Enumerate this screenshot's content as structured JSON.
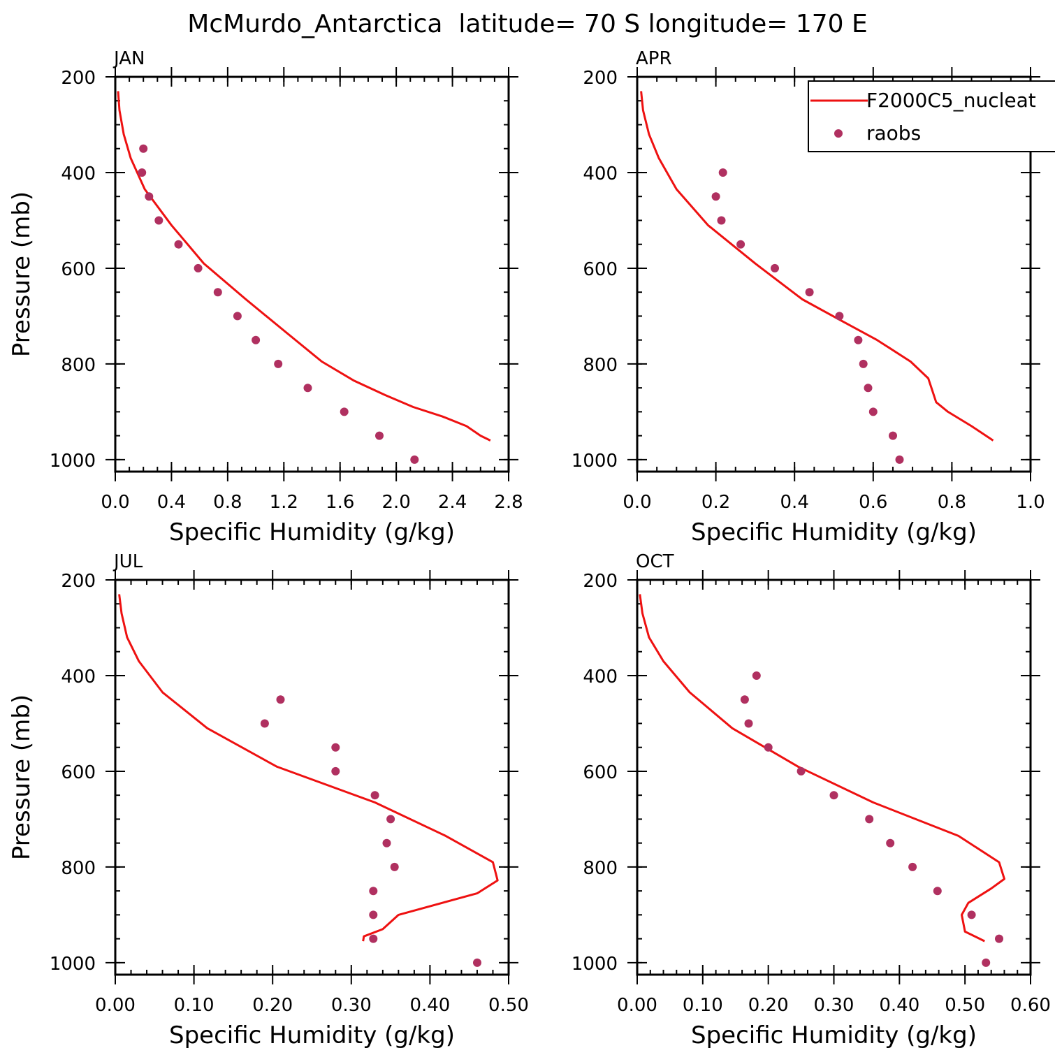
{
  "title": "McMurdo_Antarctica  latitude= 70 S longitude= 170 E",
  "legend": {
    "model_label": "F2000C5_nucleat",
    "obs_label": "raobs",
    "placement": "top-right of APR panel (clipped at right edge)"
  },
  "colors": {
    "model_line": "#ee1111",
    "obs_marker": "#b03060",
    "axis": "#000000"
  },
  "chart_data": [
    {
      "type": "line",
      "panel_label": "JAN",
      "xlabel": "Specific Humidity (g/kg)",
      "ylabel": "Pressure (mb)",
      "xlim": [
        0.0,
        2.8
      ],
      "ylim": [
        200,
        1025
      ],
      "xticks": [
        "0.0",
        "0.4",
        "0.8",
        "1.2",
        "1.6",
        "2.0",
        "2.4",
        "2.8"
      ],
      "xtick_values": [
        0.0,
        0.4,
        0.8,
        1.2,
        1.6,
        2.0,
        2.4,
        2.8
      ],
      "xminor_step": 0.1,
      "yticks": [
        "200",
        "400",
        "600",
        "800",
        "1000"
      ],
      "ytick_values": [
        200,
        400,
        600,
        800,
        1000
      ],
      "yminor_step": 50,
      "series": [
        {
          "name": "F2000C5_nucleat",
          "kind": "line",
          "x": [
            0.02,
            0.03,
            0.06,
            0.11,
            0.21,
            0.4,
            0.63,
            0.93,
            1.22,
            1.47,
            1.7,
            1.92,
            2.12,
            2.33,
            2.5,
            2.6,
            2.67
          ],
          "y": [
            230,
            270,
            320,
            370,
            435,
            510,
            590,
            665,
            735,
            795,
            835,
            865,
            890,
            910,
            930,
            950,
            960
          ]
        },
        {
          "name": "raobs",
          "kind": "scatter",
          "x": [
            0.2,
            0.19,
            0.24,
            0.31,
            0.45,
            0.59,
            0.73,
            0.87,
            1.0,
            1.16,
            1.37,
            1.63,
            1.88,
            2.13
          ],
          "y": [
            350,
            400,
            450,
            500,
            550,
            600,
            650,
            700,
            750,
            800,
            850,
            900,
            950,
            1000
          ]
        }
      ]
    },
    {
      "type": "line",
      "panel_label": "APR",
      "xlabel": "Specific Humidity (g/kg)",
      "ylabel": "",
      "xlim": [
        0.0,
        1.0
      ],
      "ylim": [
        200,
        1025
      ],
      "xticks": [
        "0.0",
        "0.2",
        "0.4",
        "0.6",
        "0.8",
        "1.0"
      ],
      "xtick_values": [
        0.0,
        0.2,
        0.4,
        0.6,
        0.8,
        1.0
      ],
      "xminor_step": 0.05,
      "yticks": [
        "200",
        "400",
        "600",
        "800",
        "1000"
      ],
      "ytick_values": [
        200,
        400,
        600,
        800,
        1000
      ],
      "yminor_step": 50,
      "series": [
        {
          "name": "F2000C5_nucleat",
          "kind": "line",
          "x": [
            0.01,
            0.015,
            0.03,
            0.055,
            0.1,
            0.18,
            0.3,
            0.42,
            0.52,
            0.61,
            0.695,
            0.74,
            0.75,
            0.76,
            0.79,
            0.85,
            0.905
          ],
          "y": [
            230,
            270,
            320,
            370,
            435,
            510,
            590,
            665,
            710,
            750,
            795,
            830,
            855,
            880,
            900,
            930,
            960
          ]
        },
        {
          "name": "raobs",
          "kind": "scatter",
          "x": [
            0.218,
            0.2,
            0.214,
            0.263,
            0.35,
            0.438,
            0.514,
            0.562,
            0.575,
            0.587,
            0.6,
            0.65,
            0.667
          ],
          "y": [
            400,
            450,
            500,
            550,
            600,
            650,
            700,
            750,
            800,
            850,
            900,
            950,
            1000
          ]
        }
      ]
    },
    {
      "type": "line",
      "panel_label": "JUL",
      "xlabel": "Specific Humidity (g/kg)",
      "ylabel": "Pressure (mb)",
      "xlim": [
        0.0,
        0.5
      ],
      "ylim": [
        200,
        1025
      ],
      "xticks": [
        "0.00",
        "0.10",
        "0.20",
        "0.30",
        "0.40",
        "0.50"
      ],
      "xtick_values": [
        0.0,
        0.1,
        0.2,
        0.3,
        0.4,
        0.5
      ],
      "xminor_step": 0.02,
      "yticks": [
        "200",
        "400",
        "600",
        "800",
        "1000"
      ],
      "ytick_values": [
        200,
        400,
        600,
        800,
        1000
      ],
      "yminor_step": 50,
      "series": [
        {
          "name": "F2000C5_nucleat",
          "kind": "line",
          "x": [
            0.005,
            0.008,
            0.015,
            0.03,
            0.06,
            0.117,
            0.205,
            0.33,
            0.42,
            0.48,
            0.486,
            0.46,
            0.36,
            0.34,
            0.316,
            0.315
          ],
          "y": [
            230,
            270,
            320,
            370,
            435,
            510,
            590,
            665,
            735,
            790,
            828,
            855,
            900,
            930,
            945,
            955
          ]
        },
        {
          "name": "raobs",
          "kind": "scatter",
          "x": [
            0.21,
            0.19,
            0.28,
            0.28,
            0.33,
            0.35,
            0.345,
            0.355,
            0.328,
            0.328,
            0.328,
            0.46
          ],
          "y": [
            450,
            500,
            550,
            600,
            650,
            700,
            750,
            800,
            850,
            900,
            950,
            1000
          ]
        }
      ]
    },
    {
      "type": "line",
      "panel_label": "OCT",
      "xlabel": "Specific Humidity (g/kg)",
      "ylabel": "",
      "xlim": [
        0.0,
        0.6
      ],
      "ylim": [
        200,
        1025
      ],
      "xticks": [
        "0.00",
        "0.10",
        "0.20",
        "0.30",
        "0.40",
        "0.50",
        "0.60"
      ],
      "xtick_values": [
        0.0,
        0.1,
        0.2,
        0.3,
        0.4,
        0.5,
        0.6
      ],
      "xminor_step": 0.02,
      "yticks": [
        "200",
        "400",
        "600",
        "800",
        "1000"
      ],
      "ytick_values": [
        200,
        400,
        600,
        800,
        1000
      ],
      "yminor_step": 50,
      "series": [
        {
          "name": "F2000C5_nucleat",
          "kind": "line",
          "x": [
            0.004,
            0.008,
            0.018,
            0.04,
            0.08,
            0.145,
            0.245,
            0.36,
            0.49,
            0.552,
            0.56,
            0.54,
            0.505,
            0.495,
            0.5,
            0.53
          ],
          "y": [
            230,
            270,
            320,
            370,
            435,
            510,
            590,
            665,
            735,
            790,
            825,
            845,
            875,
            900,
            935,
            955
          ]
        },
        {
          "name": "raobs",
          "kind": "scatter",
          "x": [
            0.182,
            0.164,
            0.17,
            0.2,
            0.25,
            0.3,
            0.354,
            0.386,
            0.42,
            0.458,
            0.51,
            0.552,
            0.532
          ],
          "y": [
            400,
            450,
            500,
            550,
            600,
            650,
            700,
            750,
            800,
            850,
            900,
            950,
            1000
          ]
        }
      ]
    }
  ]
}
